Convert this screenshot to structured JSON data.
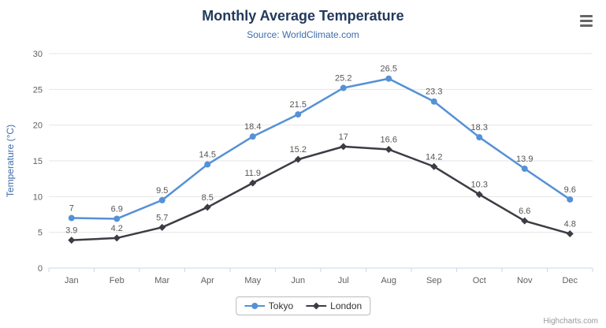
{
  "chart_data": {
    "type": "line",
    "title": "Monthly Average Temperature",
    "subtitle": "Source: WorldClimate.com",
    "xlabel": "",
    "ylabel": "Temperature (°C)",
    "categories": [
      "Jan",
      "Feb",
      "Mar",
      "Apr",
      "May",
      "Jun",
      "Jul",
      "Aug",
      "Sep",
      "Oct",
      "Nov",
      "Dec"
    ],
    "ylim": [
      0,
      30
    ],
    "ytick_interval": 5,
    "grid": true,
    "legend_position": "bottom-center",
    "series": [
      {
        "name": "Tokyo",
        "color": "#5591d6",
        "marker": "circle",
        "values": [
          7,
          6.9,
          9.5,
          14.5,
          18.4,
          21.5,
          25.2,
          26.5,
          23.3,
          18.3,
          13.9,
          9.6
        ]
      },
      {
        "name": "London",
        "color": "#3c3c44",
        "marker": "diamond",
        "values": [
          3.9,
          4.2,
          5.7,
          8.5,
          11.9,
          15.2,
          17,
          16.6,
          14.2,
          10.3,
          6.6,
          4.8
        ]
      }
    ],
    "theme": {
      "title_color": "#233a5c",
      "subtitle_color": "#3e6dab",
      "axis_title_color": "#3e6dab",
      "tick_label_color": "#606060",
      "data_label_color": "#555555",
      "grid_color": "#e6e6e6",
      "axis_line_color": "#ccd6eb",
      "background": "#ffffff"
    }
  },
  "legend": {
    "items": [
      "Tokyo",
      "London"
    ]
  },
  "credits": "Highcharts.com",
  "icons": {
    "export_menu": "hamburger-icon"
  }
}
